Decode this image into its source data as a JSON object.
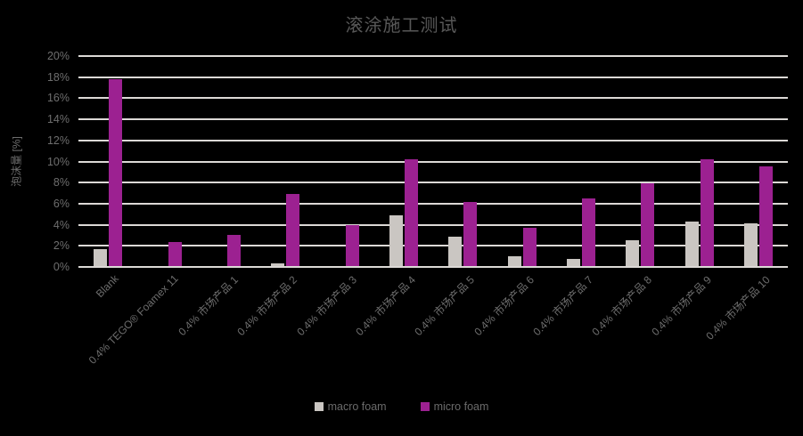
{
  "chart_data": {
    "type": "bar",
    "title": "滚涂施工测试",
    "ylabel": "泡沫量 [%]",
    "xlabel": "",
    "ylim": [
      0,
      20
    ],
    "ytick_step": 2,
    "ytick_suffix": "%",
    "grid": "horizontal",
    "legend_position": "bottom-center",
    "categories": [
      "Blank",
      "0.4% TEGO® Foamex 11",
      "0.4% 市场产品 1",
      "0.4% 市场产品 2",
      "0.4% 市场产品 3",
      "0.4% 市场产品 4",
      "0.4% 市场产品 5",
      "0.4% 市场产品 6",
      "0.4% 市场产品 7",
      "0.4% 市场产品 8",
      "0.4% 市场产品 9",
      "0.4% 市场产品 10"
    ],
    "series": [
      {
        "name": "macro foam",
        "color": "#cac6c2",
        "values": [
          1.7,
          0,
          0,
          0.3,
          0,
          4.9,
          2.9,
          1.0,
          0.8,
          2.5,
          4.3,
          4.1
        ]
      },
      {
        "name": "micro foam",
        "color": "#9c2191",
        "values": [
          17.8,
          2.4,
          3.0,
          6.9,
          4.0,
          10.2,
          6.2,
          3.7,
          6.5,
          7.9,
          10.2,
          9.5
        ]
      }
    ],
    "colors": {
      "background": "#000000",
      "gridline": "#dcd9d6",
      "title_text": "#585858",
      "axis_text": "#6e6e6e",
      "legend_text": "#6a6a6a"
    }
  }
}
